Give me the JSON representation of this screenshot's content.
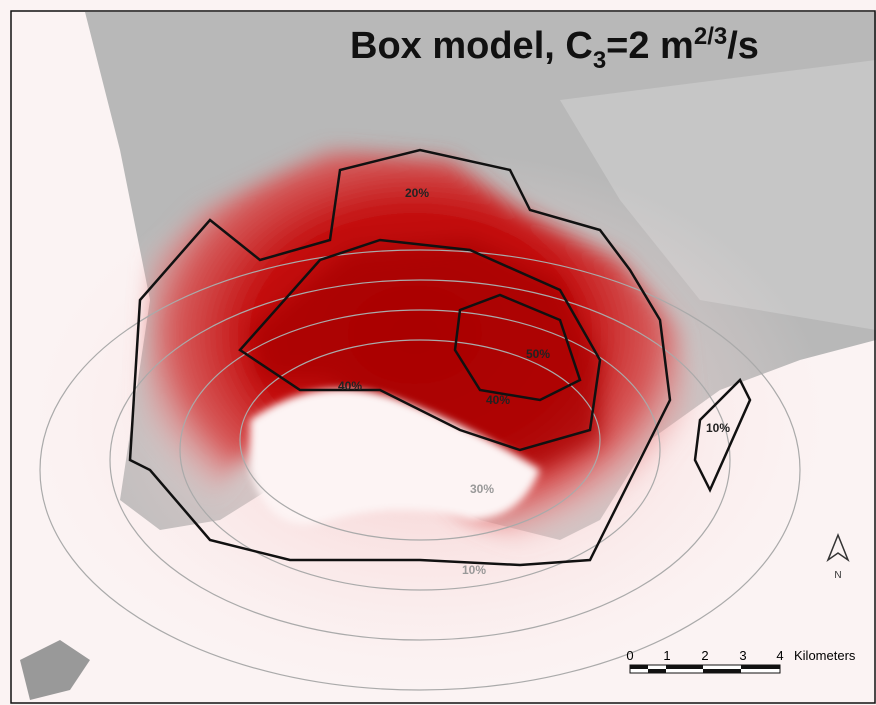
{
  "header": {
    "title_parts": [
      "Box model, C",
      "3",
      "=2 m",
      "2/3",
      "/s"
    ]
  },
  "contour_labels": [
    "20%",
    "50%",
    "40%",
    "40%",
    "10%",
    "30%",
    "10%"
  ],
  "north_arrow": {
    "label": "N"
  },
  "scale_bar": {
    "ticks": [
      "0",
      "1",
      "2",
      "3",
      "4"
    ],
    "unit": "Kilometers"
  }
}
